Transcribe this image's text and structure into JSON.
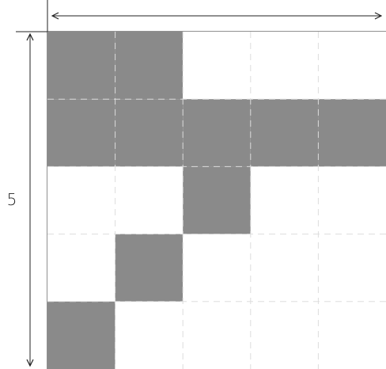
{
  "grid": {
    "rows": 5,
    "cols": 5,
    "cells": [
      [
        1,
        1,
        0,
        0,
        0
      ],
      [
        1,
        1,
        1,
        1,
        1
      ],
      [
        0,
        0,
        1,
        0,
        0
      ],
      [
        0,
        1,
        0,
        0,
        0
      ],
      [
        1,
        0,
        0,
        0,
        0
      ]
    ],
    "filled_color": "#8a8a8a",
    "empty_color": "#ffffff",
    "gridline_color": "#dddddd"
  },
  "dimension_labels": {
    "row_count": "5"
  },
  "colors": {
    "axis": "#222222"
  }
}
